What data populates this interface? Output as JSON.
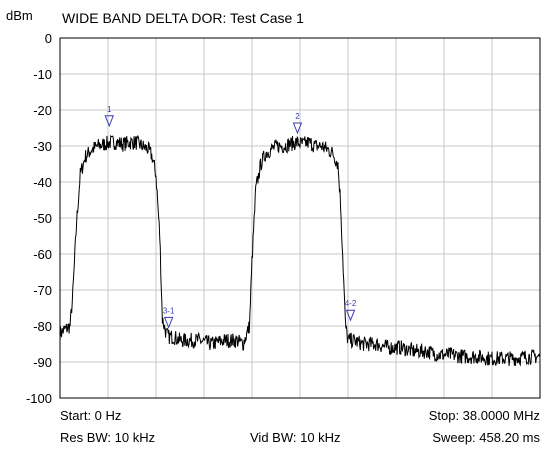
{
  "header": {
    "unit": "dBm",
    "title": "WIDE BAND DELTA DOR: Test Case 1"
  },
  "footer": {
    "start": "Start: 0 Hz",
    "stop": "Stop: 38.0000 MHz",
    "res_bw": "Res BW: 10 kHz",
    "vid_bw": "Vid BW: 10 kHz",
    "sweep": "Sweep: 458.20 ms"
  },
  "colors": {
    "trace": "#000000",
    "grid": "#c8c8c8",
    "marker": "#3c3cb4",
    "frame": "#000000"
  },
  "chart_data": {
    "type": "line",
    "title": "WIDE BAND DELTA DOR: Test Case 1",
    "ylabel": "dBm",
    "xlabel": "",
    "xlim": [
      0,
      38
    ],
    "x_unit": "MHz",
    "ylim": [
      -100,
      0
    ],
    "yticks": [
      0,
      -10,
      -20,
      -30,
      -40,
      -50,
      -60,
      -70,
      -80,
      -90,
      -100
    ],
    "grid": true,
    "series": [
      {
        "x": [
          0,
          0.4,
          0.8,
          1.0,
          1.3,
          1.6,
          2.0,
          2.5,
          3.0,
          3.5,
          4.0,
          4.5,
          5.0,
          5.5,
          6.0,
          6.5,
          7.0,
          7.3,
          7.6,
          7.9,
          8.1,
          8.4,
          8.6,
          9.0,
          9.5,
          10.0,
          11.0,
          12.0,
          13.0,
          14.0,
          14.5,
          15.0,
          15.2,
          15.5,
          15.9,
          16.3,
          16.7,
          17.2,
          17.7,
          18.2,
          18.7,
          19.2,
          19.7,
          20.2,
          20.7,
          21.2,
          21.6,
          22.0,
          22.2,
          22.4,
          22.6,
          22.8,
          23.2,
          24.0,
          25.0,
          26.0,
          27.0,
          28.0,
          29.0,
          30.0,
          31.0,
          32.0,
          33.0,
          34.0,
          35.0,
          36.0,
          37.0,
          38.0
        ],
        "y": [
          -82,
          -81,
          -80,
          -72,
          -52,
          -38,
          -33,
          -31,
          -30,
          -29.5,
          -29,
          -29,
          -29.5,
          -29,
          -29,
          -30,
          -31,
          -33,
          -38,
          -55,
          -78,
          -82,
          -83,
          -83,
          -84,
          -84,
          -84,
          -85,
          -84,
          -84,
          -85,
          -80,
          -62,
          -42,
          -35,
          -32,
          -31,
          -30,
          -30,
          -29.5,
          -29,
          -29.5,
          -29,
          -30,
          -30,
          -31,
          -32,
          -35,
          -45,
          -62,
          -80,
          -84,
          -84,
          -85,
          -85,
          -86,
          -86,
          -87,
          -87,
          -88,
          -88,
          -88.5,
          -88.5,
          -89,
          -89,
          -89,
          -88.5,
          -88.5
        ]
      }
    ],
    "markers": [
      {
        "label": "1",
        "x": 3.9,
        "y": -23
      },
      {
        "label": "2",
        "x": 18.8,
        "y": -25
      },
      {
        "label": "3-1",
        "x": 8.6,
        "y": -79
      },
      {
        "label": "4-2",
        "x": 23.0,
        "y": -77
      }
    ]
  }
}
